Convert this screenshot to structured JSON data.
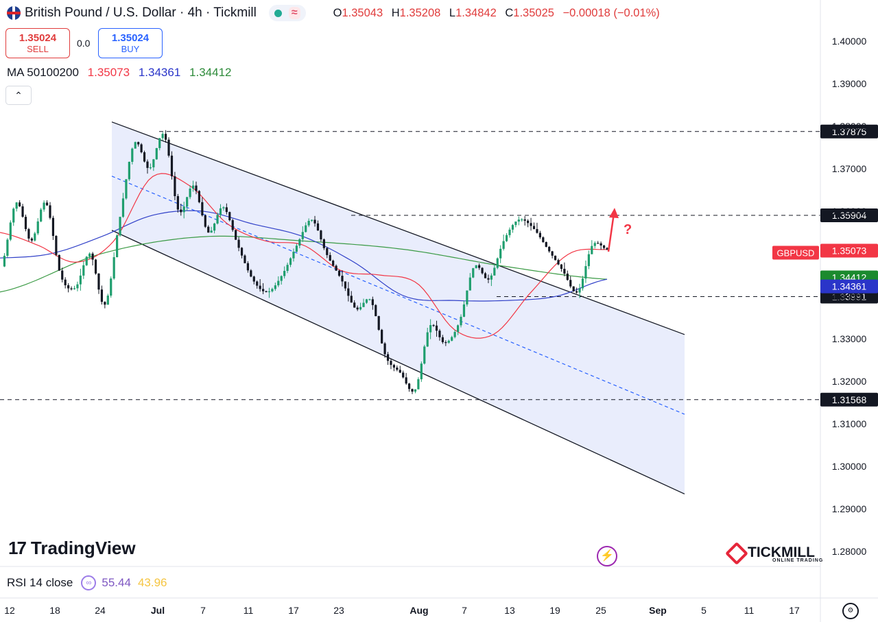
{
  "header": {
    "title": "British Pound / U.S. Dollar · 4h · Tickmill",
    "ohlc": [
      {
        "k": "O",
        "v": "1.35043"
      },
      {
        "k": "H",
        "v": "1.35208"
      },
      {
        "k": "L",
        "v": "1.34842"
      },
      {
        "k": "C",
        "v": "1.35025"
      }
    ],
    "change": "−0.00018 (−0.01%)",
    "wave_glyph": "≈"
  },
  "trade": {
    "sell_price": "1.35024",
    "sell_label": "SELL",
    "spread": "0.0",
    "buy_price": "1.35024",
    "buy_label": "BUY"
  },
  "ma_legend": {
    "label": "MA 50100200",
    "v1": "1.35073",
    "v2": "1.34361",
    "v3": "1.34412",
    "c1": "#f23645",
    "c2": "#2a35c9",
    "c3": "#2e8b3a"
  },
  "collapse_glyph": "⌃",
  "branding": {
    "tv_mark": "17",
    "tv": "TradingView",
    "tickmill": "TICKMILL",
    "tickmill_sub": "ONLINE TRADING"
  },
  "rsi": {
    "label": "RSI 14 close",
    "v1": "55.44",
    "v2": "43.96"
  },
  "icons": {
    "bolt": "⚡",
    "gear": "⚙",
    "rsi": "∞"
  },
  "chart_data": {
    "type": "candlestick",
    "symbol": "GBPUSD",
    "y_range": [
      1.275,
      1.408
    ],
    "y_ticks": [
      "1.40000",
      "1.39000",
      "1.38000",
      "1.37000",
      "1.36000",
      "1.35000",
      "1.34000",
      "1.33000",
      "1.32000",
      "1.31000",
      "1.30000",
      "1.29000",
      "1.28000"
    ],
    "x_ticks": [
      {
        "label": "12",
        "bold": false
      },
      {
        "label": "18",
        "bold": false
      },
      {
        "label": "24",
        "bold": false
      },
      {
        "label": "Jul",
        "bold": true
      },
      {
        "label": "7",
        "bold": false
      },
      {
        "label": "11",
        "bold": false
      },
      {
        "label": "17",
        "bold": false
      },
      {
        "label": "23",
        "bold": false
      },
      {
        "label": "Aug",
        "bold": true
      },
      {
        "label": "7",
        "bold": false
      },
      {
        "label": "13",
        "bold": false
      },
      {
        "label": "19",
        "bold": false
      },
      {
        "label": "25",
        "bold": false
      },
      {
        "label": "Sep",
        "bold": true
      },
      {
        "label": "5",
        "bold": false
      },
      {
        "label": "11",
        "bold": false
      },
      {
        "label": "17",
        "bold": false
      }
    ],
    "horizontal_levels": [
      "1.37875",
      "1.35904",
      "1.33991",
      "1.31568"
    ],
    "price_tags": [
      {
        "text": "1.35073",
        "value": 1.35073,
        "bg": "#f23645",
        "fg": "#ffffff"
      },
      {
        "text": "1.34412",
        "value": 1.34412,
        "bg": "#1b8a2e",
        "fg": "#ffffff"
      },
      {
        "text": "1.34361",
        "value": 1.34361,
        "bg": "#2a35c9",
        "fg": "#ffffff"
      }
    ],
    "symbol_tag_value": 1.35025,
    "channel": {
      "upper_start": 1.381,
      "upper_end": 1.331,
      "lower_start": 1.3555,
      "lower_end": 1.2935
    },
    "arrow_label": "?",
    "series_anchors": {
      "price": [
        1.347,
        1.362,
        1.353,
        1.362,
        1.345,
        1.342,
        1.35,
        1.338,
        1.358,
        1.376,
        1.37,
        1.378,
        1.36,
        1.366,
        1.355,
        1.361,
        1.352,
        1.344,
        1.341,
        1.345,
        1.352,
        1.358,
        1.35,
        1.344,
        1.337,
        1.339,
        1.326,
        1.322,
        1.318,
        1.333,
        1.329,
        1.334,
        1.347,
        1.344,
        1.353,
        1.358,
        1.356,
        1.351,
        1.346,
        1.341,
        1.352,
        1.351
      ],
      "ma50": [
        1.355,
        1.352,
        1.348,
        1.353,
        1.368,
        1.366,
        1.357,
        1.353,
        1.352,
        1.346,
        1.345,
        1.343,
        1.332,
        1.331,
        1.341,
        1.35,
        1.351
      ],
      "ma100": [
        1.349,
        1.35,
        1.354,
        1.359,
        1.36,
        1.357,
        1.354,
        1.348,
        1.34,
        1.339,
        1.339,
        1.34,
        1.344
      ],
      "ma200": [
        1.341,
        1.35,
        1.354,
        1.353,
        1.351,
        1.347,
        1.344
      ]
    }
  }
}
